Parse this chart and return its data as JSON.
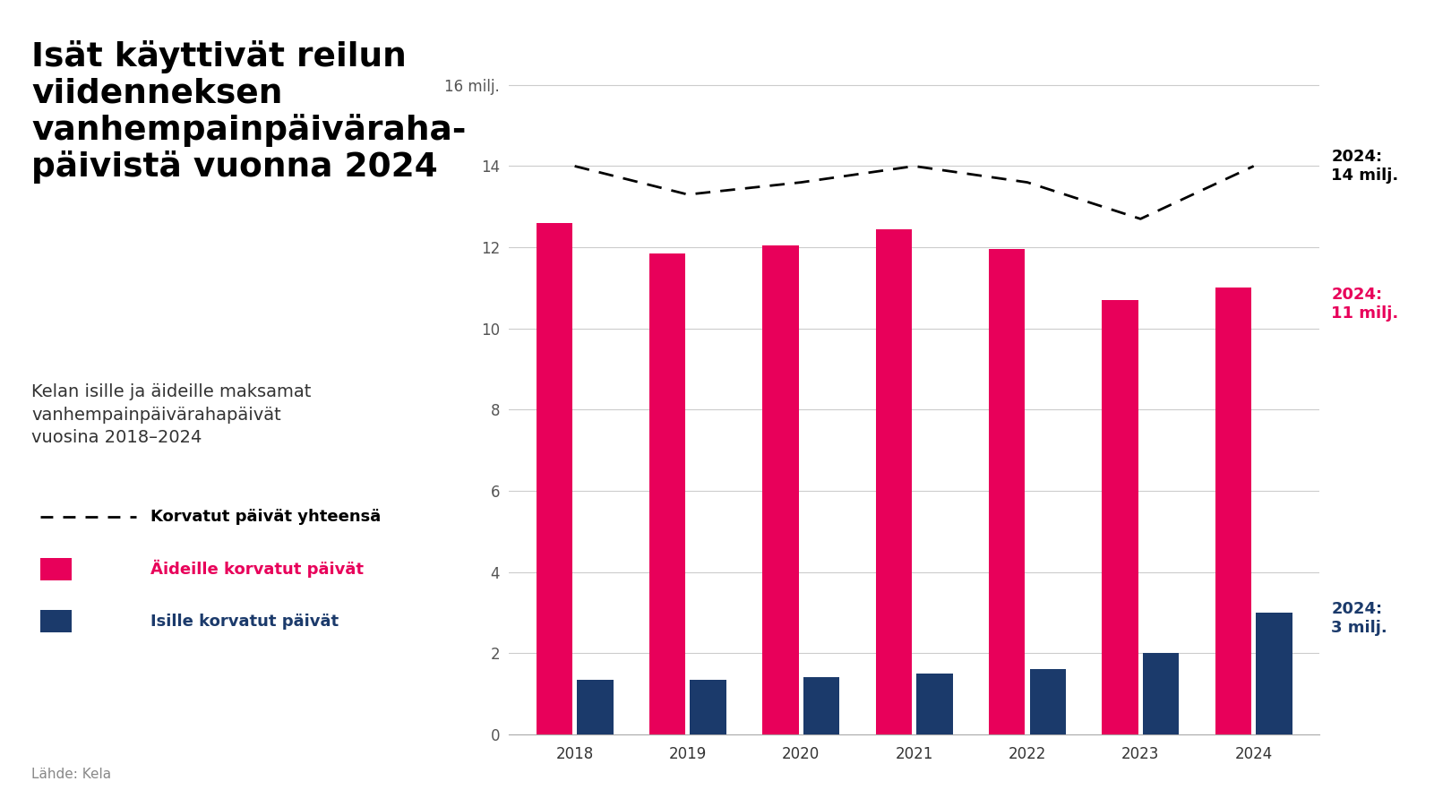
{
  "years": [
    2018,
    2019,
    2020,
    2021,
    2022,
    2023,
    2024
  ],
  "mothers_values": [
    12.6,
    11.85,
    12.05,
    12.45,
    11.95,
    10.7,
    11.0
  ],
  "fathers_values": [
    1.35,
    1.35,
    1.4,
    1.5,
    1.6,
    2.0,
    3.0
  ],
  "total_values": [
    14.0,
    13.3,
    13.6,
    14.0,
    13.6,
    12.7,
    14.0
  ],
  "mothers_color": "#E8005A",
  "fathers_color": "#1B3A6B",
  "total_color": "#000000",
  "background_color": "#FFFFFF",
  "title_line1": "Isät käyttivät reilun",
  "title_line2": "viidenneksen",
  "title_line3": "vanhempainpäiväraha-",
  "title_line4": "päivistä vuonna 2024",
  "subtitle_line1": "Kelan isille ja äideille maksamat",
  "subtitle_line2": "vanhempainpäivärahapäivät",
  "subtitle_line3": "vuosina 2018–2024",
  "legend_total": "Korvatut päivät yhteensä",
  "legend_mothers": "Äideille korvatut päivät",
  "legend_fathers": "Isille korvatut päivät",
  "source_text": "Lähde: Kela",
  "ylim": [
    0,
    16.8
  ],
  "yticks": [
    0,
    2,
    4,
    6,
    8,
    10,
    12,
    14,
    16
  ],
  "ytick_labels": [
    "0",
    "2",
    "4",
    "6",
    "8",
    "10",
    "12",
    "14",
    "16 milj."
  ],
  "annotation_total_label": "2024:",
  "annotation_total_value": "14 milj.",
  "annotation_mothers_label": "2024:",
  "annotation_mothers_value": "11 milj.",
  "annotation_fathers_label": "2024:",
  "annotation_fathers_value": "3 milj.",
  "title_fontsize": 27,
  "subtitle_fontsize": 14,
  "legend_fontsize": 13,
  "axis_fontsize": 12,
  "source_fontsize": 11,
  "bar_width": 0.32,
  "bar_gap": 0.04
}
